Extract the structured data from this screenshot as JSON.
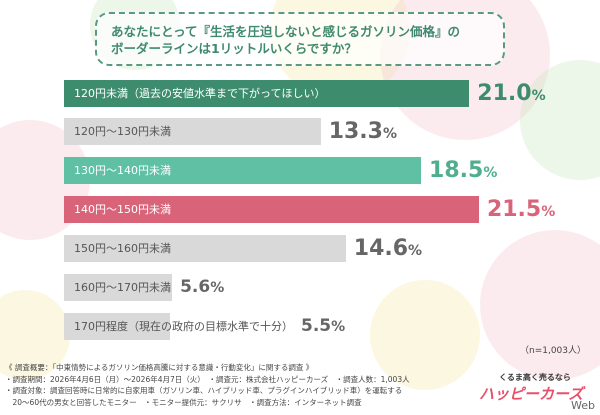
{
  "title": {
    "line1": "あなたにとって『生活を圧迫しないと感じるガソリン価格』の",
    "line2": "ボーダーラインは1リットルいくらですか？"
  },
  "chart_data": {
    "type": "bar",
    "orientation": "horizontal",
    "categories": [
      "120円未満（過去の安値水準まで下がってほしい）",
      "120円〜130円未満",
      "130円〜140円未満",
      "140円〜150円未満",
      "150円〜160円未満",
      "160円〜170円未満",
      "170円程度（現在の政府の目標水準で十分）"
    ],
    "values": [
      21.0,
      13.3,
      18.5,
      21.5,
      14.6,
      5.6,
      5.5
    ],
    "unit": "%",
    "colors": [
      "#3d8c6d",
      "#d9d9d9",
      "#5fc0a4",
      "#d9647a",
      "#d9d9d9",
      "#d9d9d9",
      "#d9d9d9"
    ],
    "value_colors": [
      "#3d8c6d",
      "#666666",
      "#4fae8f",
      "#d9647a",
      "#666666",
      "#666666",
      "#666666"
    ],
    "label_colors": [
      "#ffffff",
      "#555555",
      "#ffffff",
      "#ffffff",
      "#555555",
      "#555555",
      "#555555"
    ],
    "sample": "（n=1,003人）"
  },
  "notes": [
    "《 調査概要：「中東情勢によるガソリン価格高騰に対する意識・行動変化」に関する調査 》",
    "・調査期間：2026年4月6日（月）〜2026年4月7日（火）　・調査元：株式会社ハッピーカーズ　・調査人数：1,003人",
    "・調査対象：調査回答時に日常的に自家用車（ガソリン車、ハイブリッド車、プラグインハイブリッド車）を運転する",
    "　20〜60代の男女と回答したモニター　・モニター提供元：サクリサ　・調査方法：インターネット調査"
  ],
  "logo": {
    "tagline": "くるま高く売るなら",
    "name": "ハッピーカーズ",
    "suffix": "Web"
  }
}
